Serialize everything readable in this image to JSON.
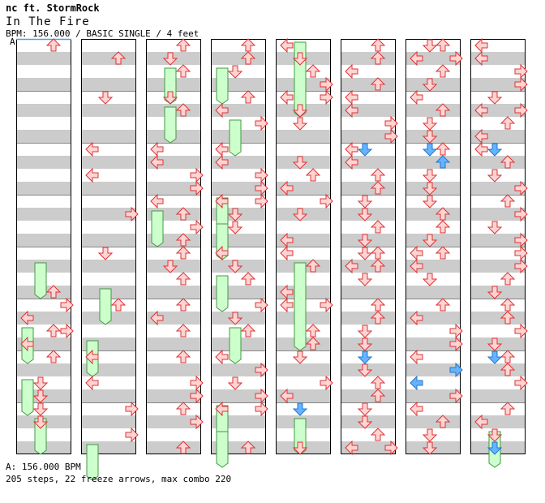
{
  "header": {
    "artist": "nc ft. StormRock",
    "title": "In The Fire",
    "info": "BPM: 156.000 / BASIC SINGLE / 4 feet",
    "bpm_marker": "A"
  },
  "footer": {
    "bpm_line": "A: 156.000 BPM",
    "summary": "205 steps, 22 freeze arrows, max combo 220"
  },
  "colors": {
    "band": "#cccccc",
    "measure_line": "#888888",
    "arrow_red_fill": "#ffd4d4",
    "arrow_red_stroke": "#dd3333",
    "arrow_blue_fill": "#66b3ff",
    "arrow_blue_stroke": "#2277cc",
    "freeze_fill": "#ccffcc",
    "freeze_stroke": "#449944",
    "bpm_line": "#4aa3df"
  },
  "chart_data": {
    "type": "step-chart",
    "columns": 8,
    "measures_per_column": 8,
    "lanes": [
      "L",
      "D",
      "U",
      "R"
    ],
    "notes": [
      [
        0,
        0,
        0,
        "U",
        "r"
      ],
      [
        0,
        4,
        3,
        "U",
        "r"
      ],
      [
        0,
        4,
        5,
        "L",
        "r"
      ],
      [
        0,
        4,
        6,
        "U",
        "r"
      ],
      [
        0,
        4,
        7,
        "L",
        "r"
      ],
      [
        0,
        5,
        0,
        "R",
        "r"
      ],
      [
        0,
        5,
        2,
        "R",
        "r"
      ],
      [
        0,
        6,
        0,
        "U",
        "r"
      ],
      [
        0,
        6,
        2,
        "D",
        "r"
      ],
      [
        0,
        6,
        3,
        "D",
        "r"
      ],
      [
        0,
        7,
        0,
        "D",
        "r"
      ],
      [
        0,
        7,
        1,
        "D",
        "r"
      ],
      [
        1,
        0,
        1,
        "U",
        "r"
      ],
      [
        1,
        1,
        0,
        "D",
        "r"
      ],
      [
        1,
        2,
        0,
        "L",
        "r"
      ],
      [
        1,
        2,
        2,
        "L",
        "r"
      ],
      [
        1,
        3,
        1,
        "R",
        "r"
      ],
      [
        1,
        4,
        0,
        "D",
        "r"
      ],
      [
        1,
        5,
        0,
        "U",
        "r"
      ],
      [
        1,
        6,
        0,
        "L",
        "r"
      ],
      [
        1,
        6,
        2,
        "L",
        "r"
      ],
      [
        1,
        7,
        0,
        "R",
        "r"
      ],
      [
        1,
        7,
        2,
        "R",
        "r"
      ],
      [
        2,
        0,
        0,
        "U",
        "r"
      ],
      [
        2,
        0,
        1,
        "D",
        "r"
      ],
      [
        2,
        0,
        2,
        "U",
        "r"
      ],
      [
        2,
        1,
        0,
        "D",
        "r"
      ],
      [
        2,
        1,
        1,
        "U",
        "r"
      ],
      [
        2,
        2,
        0,
        "L",
        "r"
      ],
      [
        2,
        2,
        1,
        "L",
        "r"
      ],
      [
        2,
        2,
        2,
        "R",
        "r"
      ],
      [
        2,
        2,
        3,
        "R",
        "r"
      ],
      [
        2,
        3,
        0,
        "L",
        "r"
      ],
      [
        2,
        3,
        1,
        "U",
        "r"
      ],
      [
        2,
        3,
        2,
        "R",
        "r"
      ],
      [
        2,
        3,
        3,
        "U",
        "r"
      ],
      [
        2,
        4,
        0,
        "U",
        "r"
      ],
      [
        2,
        4,
        1,
        "D",
        "r"
      ],
      [
        2,
        4,
        2,
        "U",
        "r"
      ],
      [
        2,
        5,
        0,
        "U",
        "r"
      ],
      [
        2,
        5,
        1,
        "L",
        "r"
      ],
      [
        2,
        5,
        2,
        "U",
        "r"
      ],
      [
        2,
        6,
        0,
        "U",
        "r"
      ],
      [
        2,
        6,
        2,
        "R",
        "r"
      ],
      [
        2,
        6,
        3,
        "R",
        "r"
      ],
      [
        2,
        7,
        0,
        "U",
        "r"
      ],
      [
        2,
        7,
        1,
        "R",
        "r"
      ],
      [
        2,
        7,
        3,
        "U",
        "r"
      ],
      [
        3,
        0,
        0,
        "U",
        "r"
      ],
      [
        3,
        0,
        1,
        "U",
        "r"
      ],
      [
        3,
        0,
        2,
        "D",
        "r"
      ],
      [
        3,
        1,
        0,
        "U",
        "r"
      ],
      [
        3,
        1,
        1,
        "L",
        "r"
      ],
      [
        3,
        1,
        2,
        "R",
        "r"
      ],
      [
        3,
        2,
        0,
        "L",
        "r"
      ],
      [
        3,
        2,
        1,
        "L",
        "r"
      ],
      [
        3,
        2,
        2,
        "R",
        "r"
      ],
      [
        3,
        2,
        3,
        "R",
        "r"
      ],
      [
        3,
        3,
        0,
        "L",
        "r"
      ],
      [
        3,
        3,
        0,
        "R",
        "r"
      ],
      [
        3,
        3,
        1,
        "D",
        "r"
      ],
      [
        3,
        3,
        2,
        "D",
        "r"
      ],
      [
        3,
        4,
        0,
        "L",
        "r"
      ],
      [
        3,
        4,
        1,
        "D",
        "r"
      ],
      [
        3,
        4,
        2,
        "U",
        "r"
      ],
      [
        3,
        5,
        0,
        "R",
        "r"
      ],
      [
        3,
        5,
        1,
        "D",
        "r"
      ],
      [
        3,
        5,
        2,
        "U",
        "r"
      ],
      [
        3,
        6,
        0,
        "L",
        "r"
      ],
      [
        3,
        6,
        1,
        "R",
        "r"
      ],
      [
        3,
        6,
        2,
        "D",
        "r"
      ],
      [
        3,
        6,
        3,
        "R",
        "r"
      ],
      [
        3,
        7,
        0,
        "L",
        "r"
      ],
      [
        3,
        7,
        0,
        "R",
        "r"
      ],
      [
        3,
        7,
        3,
        "U",
        "r"
      ],
      [
        4,
        0,
        0,
        "L",
        "r"
      ],
      [
        4,
        0,
        1,
        "D",
        "r"
      ],
      [
        4,
        0,
        2,
        "U",
        "r"
      ],
      [
        4,
        0,
        3,
        "R",
        "r"
      ],
      [
        4,
        1,
        0,
        "L",
        "r"
      ],
      [
        4,
        1,
        0,
        "R",
        "r"
      ],
      [
        4,
        1,
        1,
        "D",
        "r"
      ],
      [
        4,
        1,
        2,
        "D",
        "r"
      ],
      [
        4,
        2,
        1,
        "D",
        "r"
      ],
      [
        4,
        2,
        2,
        "U",
        "r"
      ],
      [
        4,
        2,
        3,
        "L",
        "r"
      ],
      [
        4,
        3,
        0,
        "R",
        "r"
      ],
      [
        4,
        3,
        1,
        "D",
        "r"
      ],
      [
        4,
        3,
        3,
        "L",
        "r"
      ],
      [
        4,
        4,
        0,
        "L",
        "r"
      ],
      [
        4,
        4,
        1,
        "U",
        "r"
      ],
      [
        4,
        4,
        3,
        "L",
        "r"
      ],
      [
        4,
        5,
        0,
        "L",
        "r"
      ],
      [
        4,
        5,
        0,
        "R",
        "r"
      ],
      [
        4,
        5,
        2,
        "U",
        "r"
      ],
      [
        4,
        5,
        3,
        "U",
        "r"
      ],
      [
        4,
        6,
        0,
        "D",
        "r"
      ],
      [
        4,
        6,
        2,
        "R",
        "r"
      ],
      [
        4,
        6,
        3,
        "L",
        "r"
      ],
      [
        4,
        7,
        0,
        "D",
        "b"
      ],
      [
        4,
        7,
        3,
        "D",
        "r"
      ],
      [
        5,
        0,
        0,
        "U",
        "r"
      ],
      [
        5,
        0,
        1,
        "U",
        "r"
      ],
      [
        5,
        0,
        2,
        "L",
        "r"
      ],
      [
        5,
        0,
        3,
        "U",
        "r"
      ],
      [
        5,
        1,
        0,
        "L",
        "r"
      ],
      [
        5,
        1,
        1,
        "L",
        "r"
      ],
      [
        5,
        1,
        2,
        "R",
        "r"
      ],
      [
        5,
        1,
        3,
        "R",
        "r"
      ],
      [
        5,
        2,
        0,
        "L",
        "r"
      ],
      [
        5,
        2,
        0,
        "D",
        "b"
      ],
      [
        5,
        2,
        1,
        "L",
        "r"
      ],
      [
        5,
        2,
        2,
        "U",
        "r"
      ],
      [
        5,
        2,
        3,
        "U",
        "r"
      ],
      [
        5,
        3,
        0,
        "D",
        "r"
      ],
      [
        5,
        3,
        1,
        "D",
        "r"
      ],
      [
        5,
        3,
        2,
        "U",
        "r"
      ],
      [
        5,
        3,
        3,
        "D",
        "r"
      ],
      [
        5,
        4,
        0,
        "D",
        "r"
      ],
      [
        5,
        4,
        0,
        "U",
        "r"
      ],
      [
        5,
        4,
        1,
        "L",
        "r"
      ],
      [
        5,
        4,
        1,
        "U",
        "r"
      ],
      [
        5,
        4,
        2,
        "D",
        "r"
      ],
      [
        5,
        5,
        0,
        "U",
        "r"
      ],
      [
        5,
        5,
        1,
        "U",
        "r"
      ],
      [
        5,
        5,
        2,
        "D",
        "r"
      ],
      [
        5,
        5,
        3,
        "D",
        "r"
      ],
      [
        5,
        6,
        0,
        "D",
        "b"
      ],
      [
        5,
        6,
        1,
        "D",
        "r"
      ],
      [
        5,
        6,
        2,
        "U",
        "r"
      ],
      [
        5,
        6,
        3,
        "U",
        "r"
      ],
      [
        5,
        7,
        0,
        "D",
        "r"
      ],
      [
        5,
        7,
        1,
        "D",
        "r"
      ],
      [
        5,
        7,
        2,
        "U",
        "r"
      ],
      [
        5,
        7,
        3,
        "L",
        "r"
      ],
      [
        5,
        7,
        3,
        "R",
        "r"
      ],
      [
        6,
        0,
        0,
        "D",
        "r"
      ],
      [
        6,
        0,
        0,
        "U",
        "r"
      ],
      [
        6,
        0,
        1,
        "L",
        "r"
      ],
      [
        6,
        0,
        1,
        "R",
        "r"
      ],
      [
        6,
        0,
        2,
        "U",
        "r"
      ],
      [
        6,
        0,
        3,
        "D",
        "r"
      ],
      [
        6,
        1,
        0,
        "L",
        "r"
      ],
      [
        6,
        1,
        1,
        "U",
        "r"
      ],
      [
        6,
        1,
        2,
        "D",
        "r"
      ],
      [
        6,
        1,
        3,
        "D",
        "r"
      ],
      [
        6,
        2,
        0,
        "D",
        "b"
      ],
      [
        6,
        2,
        0,
        "U",
        "r"
      ],
      [
        6,
        2,
        1,
        "U",
        "b"
      ],
      [
        6,
        2,
        2,
        "D",
        "r"
      ],
      [
        6,
        2,
        3,
        "D",
        "r"
      ],
      [
        6,
        3,
        0,
        "D",
        "r"
      ],
      [
        6,
        3,
        1,
        "U",
        "r"
      ],
      [
        6,
        3,
        2,
        "U",
        "r"
      ],
      [
        6,
        3,
        3,
        "D",
        "r"
      ],
      [
        6,
        4,
        0,
        "L",
        "r"
      ],
      [
        6,
        4,
        0,
        "U",
        "r"
      ],
      [
        6,
        4,
        1,
        "L",
        "r"
      ],
      [
        6,
        4,
        2,
        "D",
        "r"
      ],
      [
        6,
        5,
        0,
        "U",
        "r"
      ],
      [
        6,
        5,
        1,
        "L",
        "r"
      ],
      [
        6,
        5,
        2,
        "R",
        "r"
      ],
      [
        6,
        5,
        3,
        "R",
        "r"
      ],
      [
        6,
        6,
        0,
        "L",
        "r"
      ],
      [
        6,
        6,
        1,
        "R",
        "b"
      ],
      [
        6,
        6,
        2,
        "L",
        "b"
      ],
      [
        6,
        6,
        3,
        "R",
        "r"
      ],
      [
        6,
        7,
        0,
        "L",
        "r"
      ],
      [
        6,
        7,
        1,
        "U",
        "r"
      ],
      [
        6,
        7,
        2,
        "D",
        "r"
      ],
      [
        6,
        7,
        3,
        "D",
        "r"
      ],
      [
        7,
        0,
        0,
        "L",
        "r"
      ],
      [
        7,
        0,
        1,
        "L",
        "r"
      ],
      [
        7,
        0,
        2,
        "R",
        "r"
      ],
      [
        7,
        0,
        3,
        "R",
        "r"
      ],
      [
        7,
        1,
        0,
        "D",
        "r"
      ],
      [
        7,
        1,
        1,
        "L",
        "r"
      ],
      [
        7,
        1,
        1,
        "R",
        "r"
      ],
      [
        7,
        1,
        2,
        "U",
        "r"
      ],
      [
        7,
        1,
        3,
        "L",
        "r"
      ],
      [
        7,
        2,
        0,
        "L",
        "r"
      ],
      [
        7,
        2,
        0,
        "D",
        "b"
      ],
      [
        7,
        2,
        1,
        "U",
        "r"
      ],
      [
        7,
        2,
        2,
        "D",
        "r"
      ],
      [
        7,
        2,
        3,
        "R",
        "r"
      ],
      [
        7,
        3,
        0,
        "U",
        "r"
      ],
      [
        7,
        3,
        1,
        "R",
        "r"
      ],
      [
        7,
        3,
        2,
        "D",
        "r"
      ],
      [
        7,
        3,
        3,
        "R",
        "r"
      ],
      [
        7,
        4,
        0,
        "R",
        "r"
      ],
      [
        7,
        4,
        1,
        "R",
        "r"
      ],
      [
        7,
        4,
        2,
        "U",
        "r"
      ],
      [
        7,
        4,
        3,
        "D",
        "r"
      ],
      [
        7,
        5,
        0,
        "U",
        "r"
      ],
      [
        7,
        5,
        1,
        "U",
        "r"
      ],
      [
        7,
        5,
        2,
        "R",
        "r"
      ],
      [
        7,
        5,
        3,
        "D",
        "r"
      ],
      [
        7,
        6,
        0,
        "U",
        "r"
      ],
      [
        7,
        6,
        0,
        "D",
        "b"
      ],
      [
        7,
        6,
        1,
        "U",
        "r"
      ],
      [
        7,
        6,
        2,
        "R",
        "r"
      ],
      [
        7,
        7,
        0,
        "U",
        "r"
      ],
      [
        7,
        7,
        1,
        "L",
        "r"
      ],
      [
        7,
        7,
        2,
        "D",
        "r"
      ],
      [
        7,
        7,
        3,
        "D",
        "b"
      ]
    ],
    "freezes": [
      [
        0,
        4,
        1,
        1,
        3,
        "L"
      ],
      [
        0,
        5,
        2,
        0,
        3,
        "R"
      ],
      [
        0,
        6,
        2,
        0,
        3,
        "D"
      ],
      [
        0,
        7,
        1,
        1,
        3,
        "D"
      ],
      [
        1,
        4,
        3,
        1,
        3,
        "D"
      ],
      [
        1,
        5,
        3,
        0,
        3,
        "R"
      ],
      [
        1,
        7,
        3,
        0,
        3,
        "D"
      ],
      [
        2,
        0,
        2,
        1,
        3,
        "R"
      ],
      [
        2,
        1,
        1,
        1,
        3,
        "D"
      ],
      [
        2,
        3,
        1,
        0,
        3,
        "D"
      ],
      [
        3,
        0,
        2,
        0,
        3,
        "D"
      ],
      [
        3,
        1,
        2,
        1,
        3,
        "R"
      ],
      [
        3,
        3,
        0,
        0,
        3,
        "L"
      ],
      [
        3,
        3,
        2,
        0,
        3,
        "R"
      ],
      [
        3,
        4,
        2,
        0,
        3,
        "U"
      ],
      [
        3,
        5,
        2,
        1,
        3,
        "U"
      ],
      [
        3,
        7,
        0,
        0,
        3,
        "L"
      ],
      [
        3,
        7,
        2,
        0,
        3,
        "R"
      ],
      [
        4,
        0,
        0,
        1,
        6,
        "D"
      ],
      [
        4,
        4,
        1,
        1,
        7,
        "R"
      ],
      [
        4,
        7,
        1,
        1,
        3,
        "R"
      ],
      [
        7,
        7,
        2,
        1,
        3,
        "D"
      ]
    ]
  }
}
